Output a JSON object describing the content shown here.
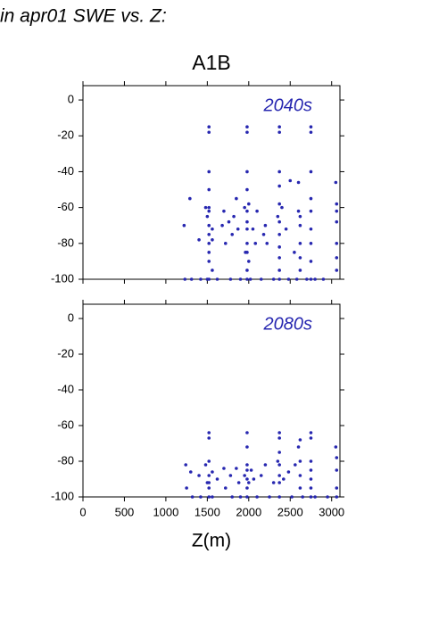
{
  "chart_data": [
    {
      "type": "scatter",
      "title": "in apr01 SWE vs. Z:",
      "subtitle": "A1B",
      "annotation": "2040s",
      "color": "#2727b0",
      "xlim": [
        0,
        3100
      ],
      "ylim": [
        -100,
        8
      ],
      "xticks": [
        0,
        500,
        1000,
        1500,
        2000,
        2500,
        3000
      ],
      "yticks": [
        0,
        -20,
        -40,
        -60,
        -80,
        -100
      ],
      "x": [
        1220,
        1230,
        1290,
        1310,
        1400,
        1420,
        1480,
        1500,
        1500,
        1520,
        1520,
        1520,
        1520,
        1520,
        1520,
        1520,
        1520,
        1520,
        1520,
        1520,
        1520,
        1560,
        1560,
        1560,
        1620,
        1680,
        1700,
        1720,
        1760,
        1780,
        1800,
        1820,
        1850,
        1870,
        1900,
        1950,
        1960,
        1980,
        1980,
        1980,
        1980,
        1980,
        1980,
        1980,
        1980,
        1980,
        1980,
        1980,
        2000,
        2000,
        2020,
        2050,
        2080,
        2100,
        2150,
        2180,
        2200,
        2220,
        2300,
        2350,
        2370,
        2370,
        2370,
        2370,
        2370,
        2370,
        2370,
        2370,
        2370,
        2370,
        2370,
        2400,
        2450,
        2480,
        2500,
        2550,
        2580,
        2600,
        2600,
        2620,
        2620,
        2620,
        2620,
        2620,
        2700,
        2750,
        2750,
        2750,
        2750,
        2750,
        2750,
        2750,
        2750,
        2750,
        2800,
        2900,
        3050,
        3060,
        3060,
        3060,
        3060,
        3060,
        3060
      ],
      "y": [
        -70,
        -100,
        -55,
        -100,
        -78,
        -100,
        -60,
        -65,
        -100,
        -15,
        -18,
        -40,
        -50,
        -60,
        -62,
        -70,
        -75,
        -80,
        -85,
        -90,
        -100,
        -72,
        -78,
        -95,
        -100,
        -70,
        -62,
        -80,
        -68,
        -100,
        -75,
        -65,
        -55,
        -72,
        -100,
        -60,
        -85,
        -15,
        -18,
        -40,
        -50,
        -62,
        -68,
        -72,
        -80,
        -85,
        -95,
        -100,
        -58,
        -90,
        -100,
        -72,
        -80,
        -62,
        -100,
        -75,
        -70,
        -80,
        -100,
        -65,
        -15,
        -18,
        -40,
        -48,
        -58,
        -68,
        -75,
        -82,
        -88,
        -95,
        -100,
        -60,
        -72,
        -100,
        -45,
        -85,
        -100,
        -46,
        -62,
        -65,
        -70,
        -80,
        -88,
        -95,
        -100,
        -15,
        -18,
        -40,
        -55,
        -62,
        -72,
        -80,
        -90,
        -100,
        -100,
        -100,
        -46,
        -58,
        -62,
        -68,
        -80,
        -88,
        -95
      ]
    },
    {
      "type": "scatter",
      "annotation": "2080s",
      "xlabel": "Z(m)",
      "color": "#2727b0",
      "xlim": [
        0,
        3100
      ],
      "ylim": [
        -100,
        8
      ],
      "xticks": [
        0,
        500,
        1000,
        1500,
        2000,
        2500,
        3000
      ],
      "yticks": [
        0,
        -20,
        -40,
        -60,
        -80,
        -100
      ],
      "x": [
        1240,
        1250,
        1300,
        1320,
        1400,
        1420,
        1480,
        1500,
        1520,
        1520,
        1520,
        1520,
        1520,
        1520,
        1520,
        1560,
        1560,
        1620,
        1700,
        1720,
        1780,
        1800,
        1850,
        1880,
        1900,
        1950,
        1980,
        1980,
        1980,
        1980,
        1980,
        1980,
        1980,
        2000,
        2030,
        2060,
        2100,
        2150,
        2200,
        2250,
        2300,
        2350,
        2370,
        2370,
        2370,
        2370,
        2370,
        2370,
        2370,
        2420,
        2480,
        2520,
        2560,
        2600,
        2620,
        2620,
        2620,
        2620,
        2650,
        2750,
        2750,
        2750,
        2750,
        2750,
        2750,
        2750,
        2800,
        2950,
        3050,
        3060,
        3060,
        3060,
        3060
      ],
      "y": [
        -82,
        -95,
        -86,
        -100,
        -88,
        -100,
        -82,
        -92,
        -64,
        -67,
        -80,
        -88,
        -92,
        -95,
        -100,
        -86,
        -100,
        -90,
        -84,
        -95,
        -88,
        -100,
        -84,
        -92,
        -100,
        -88,
        -64,
        -72,
        -82,
        -85,
        -90,
        -95,
        -100,
        -92,
        -85,
        -90,
        -100,
        -88,
        -82,
        -100,
        -92,
        -80,
        -64,
        -67,
        -75,
        -82,
        -88,
        -92,
        -100,
        -90,
        -86,
        -100,
        -82,
        -72,
        -68,
        -80,
        -88,
        -95,
        -100,
        -64,
        -67,
        -80,
        -85,
        -90,
        -95,
        -100,
        -100,
        -100,
        -72,
        -78,
        -85,
        -95,
        -100
      ]
    }
  ]
}
